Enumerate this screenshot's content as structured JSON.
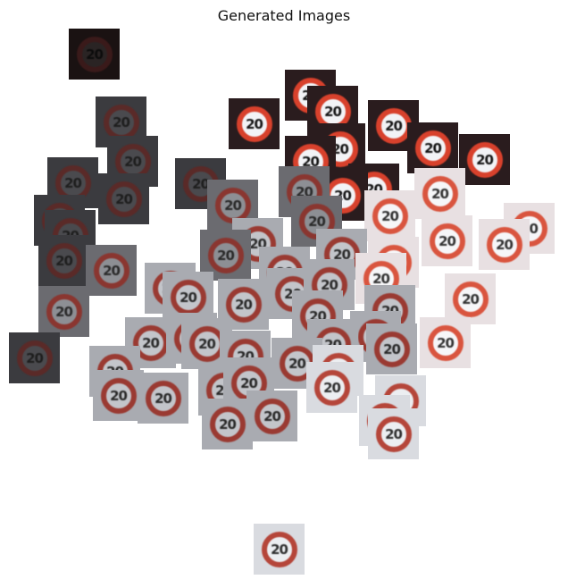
{
  "figure": {
    "title": "Generated Images",
    "sign_text": "20"
  },
  "colors": {
    "background": "#ffffff",
    "sign_ring": "#c23a2a",
    "sign_face": "#eef0f3"
  },
  "tile_kinds": {
    "very_dark": {
      "bg": "#1a1212",
      "ring": "#3a1a1a",
      "face": "#2a2424",
      "txt": "#0c0c0c"
    },
    "dark": {
      "bg": "#3b3b3f",
      "ring": "#5a2a28",
      "face": "#4a4a4e",
      "txt": "#1e1e1e"
    },
    "dim": {
      "bg": "#6b6b70",
      "ring": "#8a3630",
      "face": "#8d8f94",
      "txt": "#2a2a2a"
    },
    "grey": {
      "bg": "#a9abb1",
      "ring": "#9a3a32",
      "face": "#c3c5ca",
      "txt": "#2a2a2a"
    },
    "light": {
      "bg": "#d9dbe0",
      "ring": "#b5463a",
      "face": "#eceef1",
      "txt": "#2f2f2f"
    },
    "red_dark": {
      "bg": "#2a1c1e",
      "ring": "#d8412c",
      "face": "#f2f3f6",
      "txt": "#151515"
    },
    "red_light": {
      "bg": "#e8e0e2",
      "ring": "#d9553f",
      "face": "#f6f6f8",
      "txt": "#333333"
    }
  }
}
